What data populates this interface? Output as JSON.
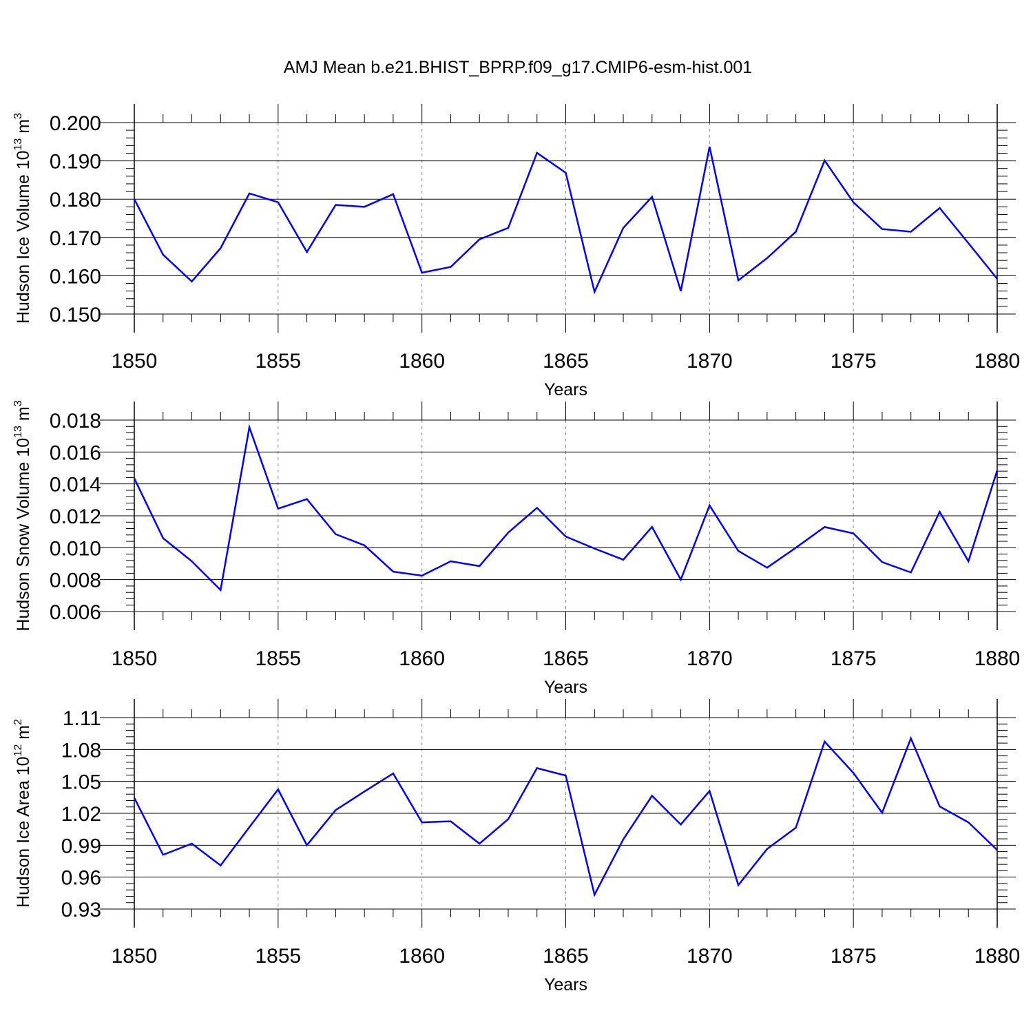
{
  "page": {
    "title": "AMJ Mean b.e21.BHIST_BPRP.f09_g17.CMIP6-esm-hist.001"
  },
  "colors": {
    "line": "#0000ff",
    "axis": "#000000",
    "grid": "#888888"
  },
  "chart_data": [
    {
      "type": "line",
      "xlabel": "Years",
      "ylabel_main": "Hudson Ice Volume 10",
      "ylabel_exp": "13",
      "ylabel_unit": "m",
      "ylabel_unit_exp": "3",
      "xlim": [
        1850,
        1880
      ],
      "ylim": [
        0.15,
        0.2
      ],
      "yticks": [
        "0.150",
        "0.160",
        "0.170",
        "0.180",
        "0.190",
        "0.200"
      ],
      "xticks": [
        "1850",
        "1855",
        "1860",
        "1865",
        "1870",
        "1875",
        "1880"
      ],
      "grid": "dashed vertical at 5-year intervals",
      "x": [
        1850,
        1851,
        1852,
        1853,
        1854,
        1855,
        1856,
        1857,
        1858,
        1859,
        1860,
        1861,
        1862,
        1863,
        1864,
        1865,
        1866,
        1867,
        1868,
        1869,
        1870,
        1871,
        1872,
        1873,
        1874,
        1875,
        1876,
        1877,
        1878,
        1879,
        1880
      ],
      "values": [
        0.18,
        0.1655,
        0.1585,
        0.1672,
        0.1815,
        0.1792,
        0.1662,
        0.1785,
        0.178,
        0.1813,
        0.1608,
        0.1623,
        0.1695,
        0.1725,
        0.1921,
        0.1869,
        0.1558,
        0.1725,
        0.1806,
        0.156,
        0.1937,
        0.1588,
        0.1646,
        0.1715,
        0.1901,
        0.1792,
        0.1722,
        0.1715,
        0.1777,
        0.1685,
        0.1592
      ]
    },
    {
      "type": "line",
      "xlabel": "Years",
      "ylabel_main": "Hudson Snow Volume 10",
      "ylabel_exp": "13",
      "ylabel_unit": "m",
      "ylabel_unit_exp": "3",
      "xlim": [
        1850,
        1880
      ],
      "ylim": [
        0.006,
        0.018
      ],
      "yticks": [
        "0.006",
        "0.008",
        "0.010",
        "0.012",
        "0.014",
        "0.016",
        "0.018"
      ],
      "xticks": [
        "1850",
        "1855",
        "1860",
        "1865",
        "1870",
        "1875",
        "1880"
      ],
      "grid": "dashed vertical at 5-year intervals",
      "x": [
        1850,
        1851,
        1852,
        1853,
        1854,
        1855,
        1856,
        1857,
        1858,
        1859,
        1860,
        1861,
        1862,
        1863,
        1864,
        1865,
        1866,
        1867,
        1868,
        1869,
        1870,
        1871,
        1872,
        1873,
        1874,
        1875,
        1876,
        1877,
        1878,
        1879,
        1880
      ],
      "values": [
        0.01435,
        0.0106,
        0.00915,
        0.00735,
        0.01755,
        0.01245,
        0.01305,
        0.01085,
        0.01015,
        0.0085,
        0.00825,
        0.00915,
        0.00885,
        0.01095,
        0.0125,
        0.0107,
        0.00995,
        0.00925,
        0.0113,
        0.008,
        0.01265,
        0.0098,
        0.00875,
        0.01,
        0.0113,
        0.0109,
        0.0091,
        0.00845,
        0.01225,
        0.00915,
        0.01485
      ]
    },
    {
      "type": "line",
      "xlabel": "Years",
      "ylabel_main": "Hudson Ice Area 10",
      "ylabel_exp": "12",
      "ylabel_unit": "m",
      "ylabel_unit_exp": "2",
      "xlim": [
        1850,
        1880
      ],
      "ylim": [
        0.93,
        1.11
      ],
      "yticks": [
        "0.93",
        "0.96",
        "0.99",
        "1.02",
        "1.05",
        "1.08",
        "1.11"
      ],
      "xticks": [
        "1850",
        "1855",
        "1860",
        "1865",
        "1870",
        "1875",
        "1880"
      ],
      "grid": "dashed vertical at 5-year intervals",
      "x": [
        1850,
        1851,
        1852,
        1853,
        1854,
        1855,
        1856,
        1857,
        1858,
        1859,
        1860,
        1861,
        1862,
        1863,
        1864,
        1865,
        1866,
        1867,
        1868,
        1869,
        1870,
        1871,
        1872,
        1873,
        1874,
        1875,
        1876,
        1877,
        1878,
        1879,
        1880
      ],
      "values": [
        1.0345,
        0.981,
        0.9915,
        0.971,
        1.007,
        1.0425,
        0.99,
        1.023,
        1.0405,
        1.0575,
        1.0115,
        1.0125,
        0.9915,
        1.0145,
        1.0625,
        1.0555,
        0.9435,
        0.9955,
        1.0365,
        1.0095,
        1.041,
        0.9525,
        0.9865,
        1.0065,
        1.0875,
        1.058,
        1.0205,
        1.0905,
        1.0265,
        1.0115,
        0.9855
      ]
    }
  ]
}
